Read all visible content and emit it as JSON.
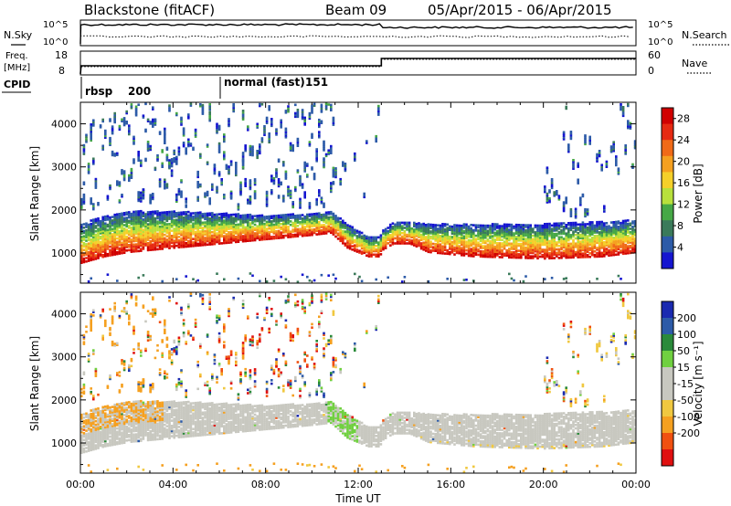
{
  "header": {
    "station": "Blackstone (fitACF)",
    "beam": "Beam 09",
    "date_range": "05/Apr/2015 - 06/Apr/2015"
  },
  "noise_panel": {
    "left_label": "N.Sky",
    "right_label": "N.Search",
    "left_ticks": [
      "10^5",
      "10^0"
    ],
    "right_ticks": [
      "10^5",
      "10^0"
    ]
  },
  "freq_panel": {
    "left_label_top": "Freq.",
    "left_label_bottom": "[MHz]",
    "right_label": "Nave",
    "left_ticks": [
      "18",
      "8"
    ],
    "right_ticks": [
      "60",
      "0"
    ]
  },
  "cpid": {
    "label": "CPID",
    "segments": [
      {
        "name": "rbsp",
        "id": "200",
        "start_hour": 0
      },
      {
        "name": "normal (fast)",
        "id": "151",
        "start_hour": 6
      }
    ]
  },
  "chart_data": [
    {
      "type": "heatmap",
      "panel": "power",
      "ylabel": "Slant Range [km]",
      "ylim": [
        300,
        4500
      ],
      "y_ticks": [
        "1000",
        "2000",
        "3000",
        "4000"
      ],
      "xlim": [
        0,
        24
      ],
      "colorbar": {
        "label": "Power [dB]",
        "ticks": [
          "28",
          "24",
          "20",
          "16",
          "12",
          "8",
          "4"
        ],
        "range": [
          0,
          30
        ]
      },
      "band": {
        "hours": [
          0,
          1,
          2,
          4,
          6,
          8,
          10,
          10.8,
          11.5,
          12.4,
          12.9,
          13.0,
          13.5,
          14.2,
          15,
          17,
          20,
          22.5,
          24
        ],
        "lower_edge_km": [
          800,
          950,
          1050,
          1150,
          1250,
          1350,
          1450,
          1500,
          1150,
          950,
          950,
          1100,
          1250,
          1250,
          1050,
          950,
          900,
          950,
          1050
        ],
        "upper_edge_km": [
          1700,
          1900,
          2000,
          2000,
          1950,
          1900,
          1950,
          2000,
          1700,
          1400,
          1400,
          1550,
          1750,
          1750,
          1700,
          1700,
          1700,
          1750,
          1800
        ]
      }
    },
    {
      "type": "heatmap",
      "panel": "velocity",
      "ylabel": "Slant Range [km]",
      "ylim": [
        300,
        4500
      ],
      "y_ticks": [
        "1000",
        "2000",
        "3000",
        "4000"
      ],
      "xlim": [
        0,
        24
      ],
      "x_ticks": [
        "00:00",
        "04:00",
        "08:00",
        "12:00",
        "16:00",
        "20:00",
        "00:00"
      ],
      "xlabel": "Time UT",
      "colorbar": {
        "label": "Velocity [m s⁻¹]",
        "ticks": [
          "200",
          "100",
          "50",
          "15",
          "-15",
          "-50",
          "-100",
          "-200"
        ]
      }
    }
  ],
  "colors": {
    "power_scale": [
      "#1515d0",
      "#2d5ba8",
      "#3a7a5a",
      "#46a846",
      "#b8e03c",
      "#f5d02a",
      "#f5a020",
      "#f06a18",
      "#e62a12",
      "#d00000"
    ],
    "velocity_scale": [
      "#e01010",
      "#f05010",
      "#f5a020",
      "#f0c840",
      "#c8c8c0",
      "#c8c8c0",
      "#70d040",
      "#2a8a3a",
      "#2d5ba8",
      "#1a2ab0"
    ]
  }
}
